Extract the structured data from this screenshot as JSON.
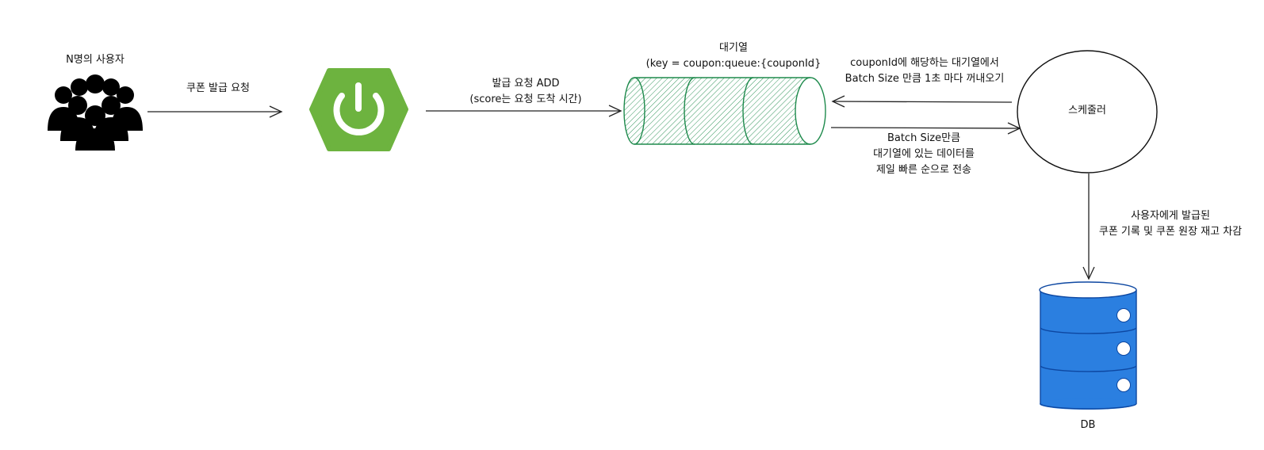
{
  "nodes": {
    "users": {
      "label": "N명의 사용자",
      "icon": "users-group-icon"
    },
    "server": {
      "icon": "spring-power-icon",
      "color": "#6DB33F"
    },
    "queue": {
      "label_line1": "대기열",
      "label_line2": "(key = coupon:queue:{couponId}",
      "icon": "queue-cylinder-icon",
      "color": "#1E8A4C"
    },
    "scheduler": {
      "label": "스케줄러"
    },
    "db": {
      "label": "DB",
      "icon": "database-icon",
      "color": "#2B7FE0"
    }
  },
  "edges": {
    "users_to_server": {
      "label": "쿠폰 발급 요청"
    },
    "server_to_queue": {
      "line1": "발급 요청 ADD",
      "line2": "(score는 요청 도착 시간)"
    },
    "scheduler_to_queue": {
      "line1": "couponId에 해당하는 대기열에서",
      "line2": "Batch Size 만큼 1초 마다 꺼내오기"
    },
    "queue_to_scheduler": {
      "line1": "Batch Size만큼",
      "line2": "대기열에 있는 데이터를",
      "line3": "제일 빠른 순으로 전송"
    },
    "scheduler_to_db": {
      "line1": "사용자에게 발급된",
      "line2": "쿠폰 기록 및 쿠폰 원장 재고 차감"
    }
  }
}
